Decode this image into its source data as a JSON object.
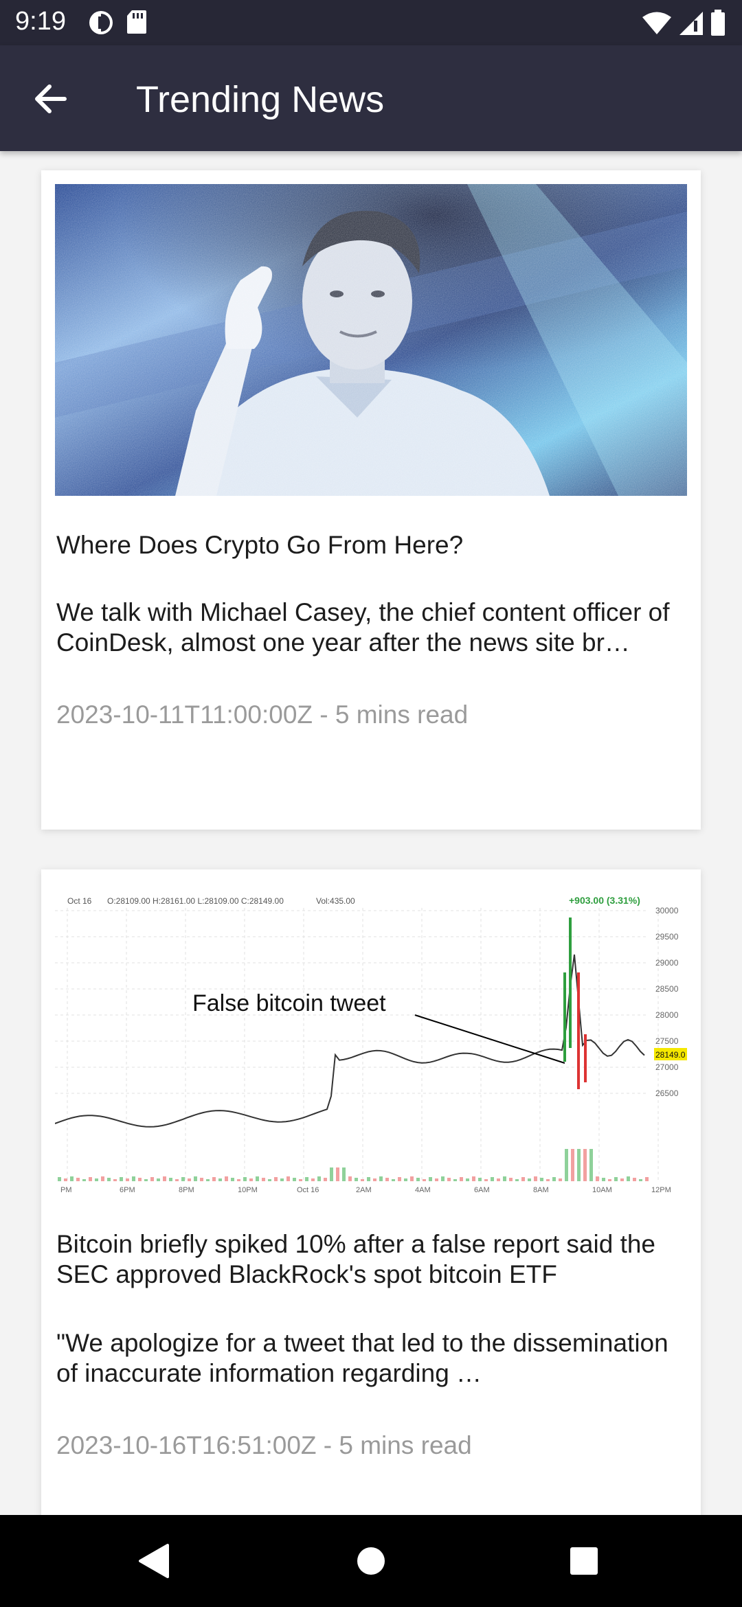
{
  "status_bar": {
    "time": "9:19",
    "left_icons": [
      "data-saver-icon",
      "sd-card-icon"
    ],
    "right_icons": [
      "wifi-icon",
      "signal-icon",
      "battery-icon"
    ]
  },
  "app_bar": {
    "title": "Trending News",
    "back_icon": "arrow-left-icon"
  },
  "articles": [
    {
      "title": "Where Does Crypto Go From Here?",
      "description": "We talk with Michael Casey, the chief content officer of CoinDesk, almost one year after the news site br…",
      "date": "2023-10-11T11:00:00Z",
      "read_time": " - 5 mins read",
      "image": "portrait-photo"
    },
    {
      "title": "Bitcoin briefly spiked 10% after a false report said the SEC approved BlackRock's spot bitcoin ETF",
      "description": "\"We apologize for a tweet that led to the dissemination of inaccurate information regarding …",
      "date": "2023-10-16T16:51:00Z",
      "read_time": " - 5 mins read",
      "image": "bitcoin-price-chart",
      "chart_text": {
        "date": "Oct 16",
        "ohlc": "O:28109.00  H:28161.00  L:28109.00  C:28149.00",
        "vol": "Vol:435.00",
        "change": "+903.00 (3.31%)",
        "annotation": "False bitcoin tweet",
        "price_tag": "28149.0",
        "y_ticks": [
          "30000",
          "29500",
          "29000",
          "28500",
          "28000",
          "27500",
          "27000",
          "26500"
        ],
        "x_ticks": [
          "PM",
          "6PM",
          "8PM",
          "10PM",
          "Oct 16",
          "2AM",
          "4AM",
          "6AM",
          "8AM",
          "10AM",
          "12PM"
        ]
      }
    }
  ],
  "nav_bar": {
    "icons": [
      "back-triangle-icon",
      "home-circle-icon",
      "recents-square-icon"
    ]
  }
}
